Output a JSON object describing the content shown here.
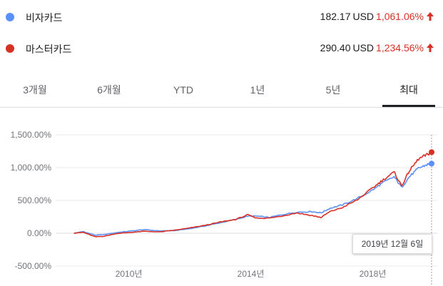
{
  "stocks": [
    {
      "name": "비자카드",
      "price": "182.17",
      "unit": "USD",
      "change": "1,061.06%",
      "color": "#5b8ff9",
      "direction": "up"
    },
    {
      "name": "마스터카드",
      "price": "290.40",
      "unit": "USD",
      "change": "1,234.56%",
      "color": "#d93025",
      "direction": "up"
    }
  ],
  "colors": {
    "up": "#d93025",
    "grid": "#e8eaed",
    "zero_line": "#dadce0",
    "axis_text": "#70757a"
  },
  "tabs": [
    {
      "label": "3개월",
      "active": false
    },
    {
      "label": "6개월",
      "active": false
    },
    {
      "label": "YTD",
      "active": false
    },
    {
      "label": "1년",
      "active": false
    },
    {
      "label": "5년",
      "active": false
    },
    {
      "label": "최대",
      "active": true
    }
  ],
  "tooltip": {
    "date": "2019년 12월 6일"
  },
  "chart_data": {
    "type": "line",
    "y_ticks": [
      "1,500.00%",
      "1,000.00%",
      "500.00%",
      "0.00%",
      "-500.00%"
    ],
    "x_ticks": [
      "2010년",
      "2014년",
      "2018년"
    ],
    "ylim": [
      -500,
      1500
    ],
    "xlim": [
      2007.6,
      2019.93
    ],
    "grid": true,
    "series": [
      {
        "name": "비자카드",
        "color": "#5b8ff9",
        "points": [
          [
            2008.2,
            0
          ],
          [
            2008.5,
            25
          ],
          [
            2008.9,
            -30
          ],
          [
            2009.2,
            -20
          ],
          [
            2009.6,
            10
          ],
          [
            2010.0,
            30
          ],
          [
            2010.5,
            55
          ],
          [
            2011.0,
            35
          ],
          [
            2011.5,
            40
          ],
          [
            2012.0,
            70
          ],
          [
            2012.5,
            110
          ],
          [
            2013.0,
            160
          ],
          [
            2013.5,
            210
          ],
          [
            2013.9,
            260
          ],
          [
            2014.2,
            260
          ],
          [
            2014.6,
            240
          ],
          [
            2015.0,
            280
          ],
          [
            2015.5,
            320
          ],
          [
            2016.0,
            330
          ],
          [
            2016.3,
            310
          ],
          [
            2016.6,
            380
          ],
          [
            2017.0,
            430
          ],
          [
            2017.5,
            530
          ],
          [
            2018.0,
            660
          ],
          [
            2018.3,
            760
          ],
          [
            2018.7,
            860
          ],
          [
            2018.95,
            700
          ],
          [
            2019.2,
            860
          ],
          [
            2019.5,
            990
          ],
          [
            2019.75,
            1040
          ],
          [
            2019.93,
            1061
          ]
        ]
      },
      {
        "name": "마스터카드",
        "color": "#d93025",
        "points": [
          [
            2008.2,
            0
          ],
          [
            2008.5,
            15
          ],
          [
            2008.9,
            -55
          ],
          [
            2009.2,
            -45
          ],
          [
            2009.6,
            -5
          ],
          [
            2010.0,
            10
          ],
          [
            2010.5,
            30
          ],
          [
            2011.0,
            20
          ],
          [
            2011.5,
            45
          ],
          [
            2012.0,
            80
          ],
          [
            2012.5,
            120
          ],
          [
            2013.0,
            170
          ],
          [
            2013.5,
            210
          ],
          [
            2013.9,
            280
          ],
          [
            2014.2,
            230
          ],
          [
            2014.6,
            230
          ],
          [
            2015.0,
            260
          ],
          [
            2015.5,
            310
          ],
          [
            2016.0,
            270
          ],
          [
            2016.3,
            240
          ],
          [
            2016.6,
            330
          ],
          [
            2017.0,
            390
          ],
          [
            2017.5,
            510
          ],
          [
            2018.0,
            690
          ],
          [
            2018.3,
            800
          ],
          [
            2018.7,
            930
          ],
          [
            2018.95,
            720
          ],
          [
            2019.2,
            950
          ],
          [
            2019.5,
            1130
          ],
          [
            2019.75,
            1190
          ],
          [
            2019.93,
            1235
          ]
        ]
      }
    ]
  }
}
